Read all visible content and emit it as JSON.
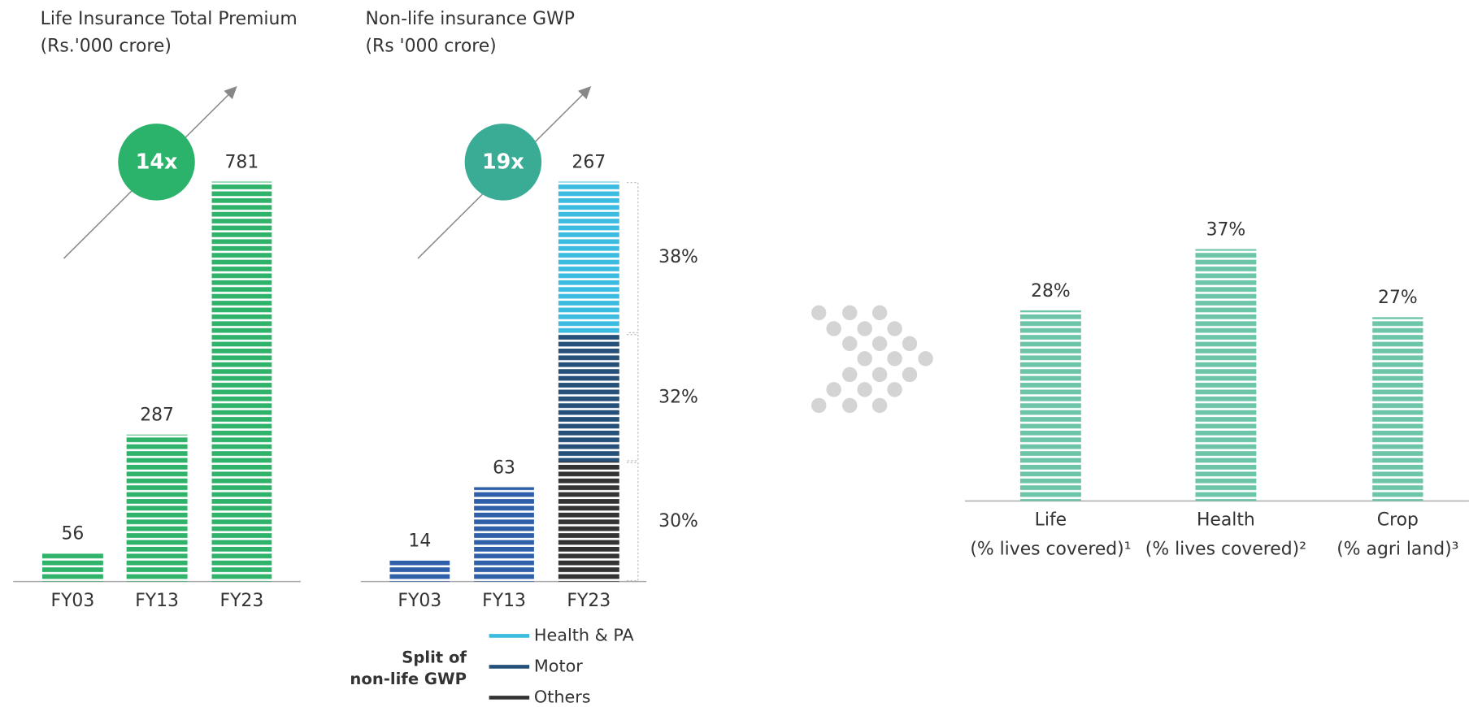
{
  "chart_data": [
    {
      "type": "bar",
      "title": "Life Insurance Total Premium",
      "subtitle": "(Rs.'000 crore)",
      "categories": [
        "FY03",
        "FY13",
        "FY23"
      ],
      "values": [
        56,
        287,
        781
      ],
      "color": "#2fb36a",
      "annotation": "14x",
      "annotation_color": "#2bb36b"
    },
    {
      "type": "stacked_split_bar",
      "title": "Non-life insurance GWP",
      "subtitle": "(Rs '000 crore)",
      "categories": [
        "FY03",
        "FY13",
        "FY23"
      ],
      "values": [
        14,
        63,
        267
      ],
      "color": "#2f5fa8",
      "annotation": "19x",
      "annotation_color": "#3aab94",
      "split": {
        "title": [
          "Split of",
          "non-life GWP"
        ],
        "category_index": 2,
        "series": [
          {
            "name": "Health & PA",
            "color": "#3bbbe0",
            "value": 38,
            "value_label": "38%"
          },
          {
            "name": "Motor",
            "color": "#24507a",
            "value": 32,
            "value_label": "32%"
          },
          {
            "name": "Others",
            "color": "#333333",
            "value": 30,
            "value_label": "30%"
          }
        ]
      }
    },
    {
      "type": "bar",
      "categories": [
        "Life",
        "Health",
        "Crop"
      ],
      "sublabels": [
        "(% lives covered)¹",
        "(% lives covered)²",
        "(% agri land)³"
      ],
      "values": [
        28,
        37,
        27
      ],
      "value_labels": [
        "28%",
        "37%",
        "27%"
      ],
      "color": "#6cc5a8"
    }
  ]
}
